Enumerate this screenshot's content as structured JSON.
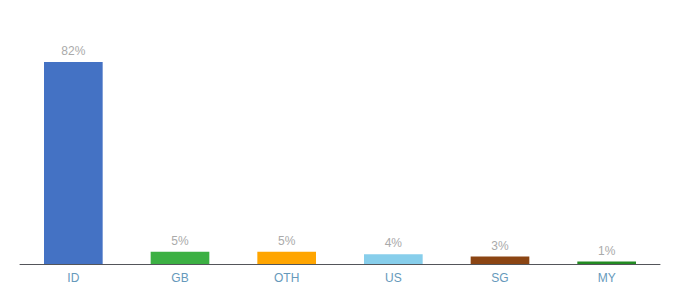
{
  "chart_data": {
    "type": "bar",
    "categories": [
      "ID",
      "GB",
      "OTH",
      "US",
      "SG",
      "MY"
    ],
    "values": [
      82,
      5,
      5,
      4,
      3,
      1
    ],
    "value_labels": [
      "82%",
      "5%",
      "5%",
      "4%",
      "3%",
      "1%"
    ],
    "colors": [
      "#4472c4",
      "#3cb043",
      "#ffa500",
      "#87ceeb",
      "#8b4513",
      "#228b22"
    ],
    "ylim": [
      0,
      95
    ],
    "data_labels": true,
    "tick_labels": "x",
    "grid": false
  }
}
